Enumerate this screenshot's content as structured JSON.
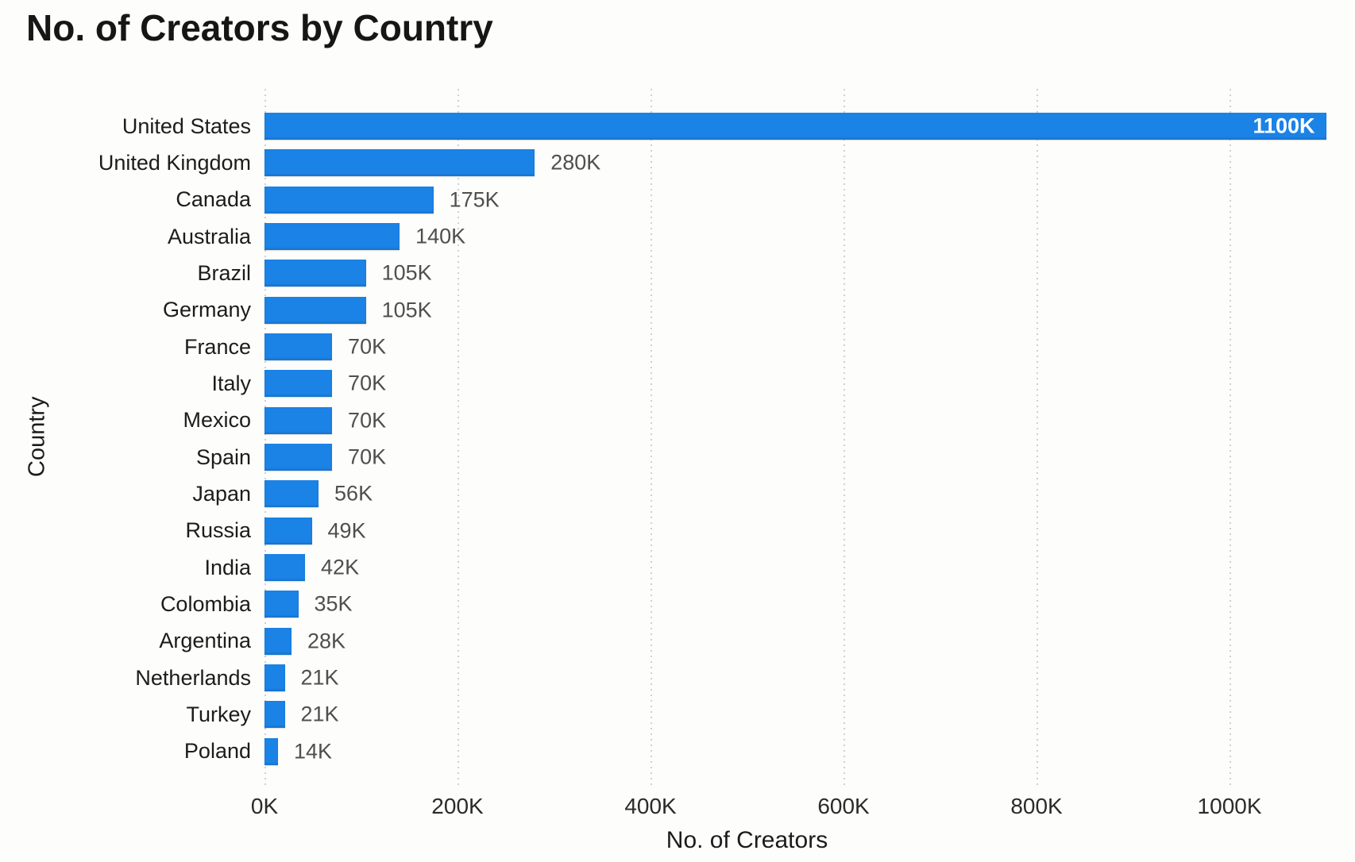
{
  "title": "No. of Creators by Country",
  "chart_data": {
    "type": "bar",
    "orientation": "horizontal",
    "title": "No. of Creators by Country",
    "xlabel": "No. of Creators",
    "ylabel": "Country",
    "categories": [
      "United States",
      "United Kingdom",
      "Canada",
      "Australia",
      "Brazil",
      "Germany",
      "France",
      "Italy",
      "Mexico",
      "Spain",
      "Japan",
      "Russia",
      "India",
      "Colombia",
      "Argentina",
      "Netherlands",
      "Turkey",
      "Poland"
    ],
    "values": [
      1100,
      280,
      175,
      140,
      105,
      105,
      70,
      70,
      70,
      70,
      56,
      49,
      42,
      35,
      28,
      21,
      21,
      14
    ],
    "value_labels": [
      "1100K",
      "280K",
      "175K",
      "140K",
      "105K",
      "105K",
      "70K",
      "70K",
      "70K",
      "70K",
      "56K",
      "49K",
      "42K",
      "35K",
      "28K",
      "21K",
      "21K",
      "14K"
    ],
    "unit": "K",
    "xlim": [
      0,
      1130
    ],
    "xticks": [
      {
        "value": 0,
        "label": "0K"
      },
      {
        "value": 200,
        "label": "200K"
      },
      {
        "value": 400,
        "label": "400K"
      },
      {
        "value": 600,
        "label": "600K"
      },
      {
        "value": 800,
        "label": "800K"
      },
      {
        "value": 1000,
        "label": "1000K"
      }
    ],
    "grid": {
      "vertical": true,
      "horizontal": false,
      "style": "dotted"
    },
    "legend": "none",
    "colors": {
      "bar": "#1b82e6",
      "bar_label_inside": "#ffffff",
      "value_label": "#4f4f4f",
      "category_label": "#1c1c1c",
      "tick_label": "#2b2b2b",
      "gridline": "#cfd0d6",
      "title": "#161616",
      "background": "#fdfdfb"
    }
  }
}
